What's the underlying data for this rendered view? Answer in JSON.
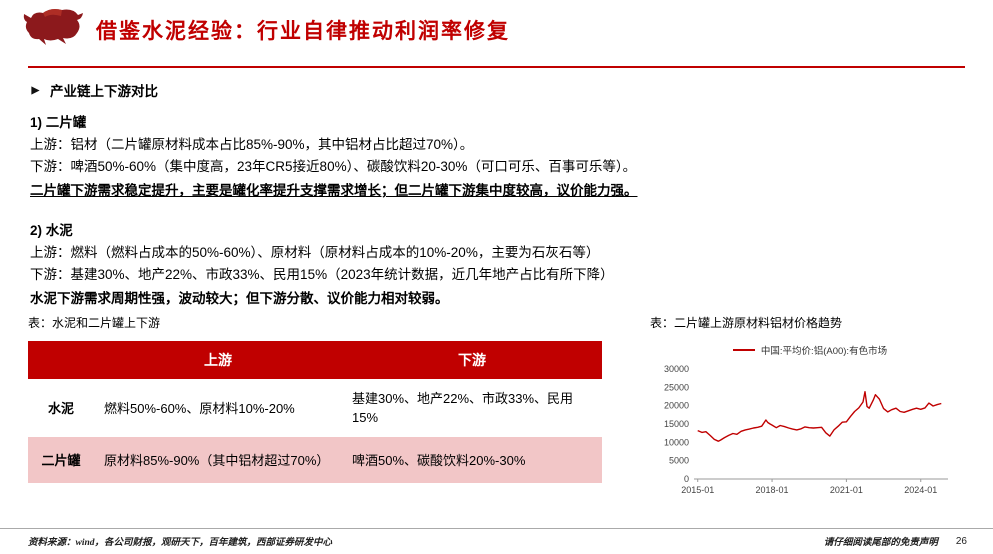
{
  "colors": {
    "accent": "#c00000",
    "table_header_bg": "#c00000",
    "row_highlight": "#f2c6c7",
    "chart_line": "#c00000"
  },
  "header": {
    "title": "借鉴水泥经验：行业自律推动利润率修复"
  },
  "heading": "产业链上下游对比",
  "sections": [
    {
      "label": "1)  二片罐",
      "lines": [
        "上游：铝材（二片罐原材料成本占比85%-90%，其中铝材占比超过70%）。",
        "下游：啤酒50%-60%（集中度高，23年CR5接近80%）、碳酸饮料20-30%（可口可乐、百事可乐等）。"
      ],
      "emphasis": "二片罐下游需求稳定提升，主要是罐化率提升支撑需求增长；但二片罐下游集中度较高，议价能力强。"
    },
    {
      "label": "2)  水泥",
      "lines": [
        "上游：燃料（燃料占成本的50%-60%）、原材料（原材料占成本的10%-20%，主要为石灰石等）",
        "下游：基建30%、地产22%、市政33%、民用15%（2023年统计数据，近几年地产占比有所下降）"
      ],
      "emphasis": "水泥下游需求周期性强，波动较大；但下游分散、议价能力相对较弱。"
    }
  ],
  "table": {
    "caption": "表：水泥和二片罐上下游",
    "headers": [
      "上游",
      "下游"
    ],
    "rows": [
      {
        "label": "水泥",
        "upstream": "燃料50%-60%、原材料10%-20%",
        "downstream": "基建30%、地产22%、市政33%、民用15%"
      },
      {
        "label": "二片罐",
        "upstream": "原材料85%-90%（其中铝材超过70%）",
        "downstream": "啤酒50%、碳酸饮料20%-30%"
      }
    ]
  },
  "chart": {
    "caption": "表：二片罐上游原材料铝材价格趋势",
    "legend": "中国:平均价:铝(A00):有色市场"
  },
  "chart_data": {
    "type": "line",
    "title": "二片罐上游原材料铝材价格趋势",
    "series": [
      {
        "name": "中国:平均价:铝(A00):有色市场"
      }
    ],
    "x": [
      2015.0,
      2015.17,
      2015.33,
      2015.5,
      2015.67,
      2015.83,
      2015.92,
      2016.08,
      2016.25,
      2016.42,
      2016.58,
      2016.75,
      2016.92,
      2017.08,
      2017.25,
      2017.42,
      2017.58,
      2017.75,
      2017.83,
      2017.92,
      2018.0,
      2018.17,
      2018.33,
      2018.5,
      2018.67,
      2018.83,
      2019.0,
      2019.17,
      2019.33,
      2019.5,
      2019.67,
      2019.83,
      2020.0,
      2020.17,
      2020.33,
      2020.5,
      2020.67,
      2020.83,
      2021.0,
      2021.17,
      2021.33,
      2021.5,
      2021.67,
      2021.75,
      2021.83,
      2021.92,
      2022.0,
      2022.08,
      2022.17,
      2022.33,
      2022.5,
      2022.67,
      2022.83,
      2023.0,
      2023.17,
      2023.33,
      2023.5,
      2023.67,
      2023.83,
      2024.0,
      2024.17,
      2024.33,
      2024.5,
      2024.67,
      2024.83
    ],
    "values": [
      13200,
      12700,
      12900,
      11900,
      10800,
      10300,
      10600,
      11300,
      11900,
      12400,
      12200,
      13000,
      13400,
      13600,
      13900,
      14100,
      14400,
      16100,
      15400,
      15000,
      14700,
      14000,
      14600,
      14300,
      13900,
      13600,
      13400,
      13700,
      14200,
      14000,
      13900,
      14000,
      14100,
      12600,
      11700,
      13400,
      14400,
      15500,
      15600,
      17100,
      18400,
      19400,
      21000,
      23800,
      19800,
      19300,
      20400,
      21500,
      23000,
      21800,
      19200,
      18300,
      18900,
      19300,
      18400,
      18200,
      18600,
      19000,
      19300,
      19000,
      19400,
      20700,
      19900,
      20300,
      20600
    ],
    "ylim": [
      0,
      30000
    ],
    "yticks": [
      0,
      5000,
      10000,
      15000,
      20000,
      25000,
      30000
    ],
    "xticks": [
      "2015-01",
      "2018-01",
      "2021-01",
      "2024-01"
    ],
    "xtick_years": [
      2015,
      2018,
      2021,
      2024
    ],
    "line_color": "#c00000",
    "grid": false,
    "legend_position": "top"
  },
  "footer": {
    "source": "资料来源：wind，各公司财报，观研天下，百年建筑，西部证券研发中心",
    "disclaimer": "请仔细阅读尾部的免责声明",
    "page": "26"
  }
}
